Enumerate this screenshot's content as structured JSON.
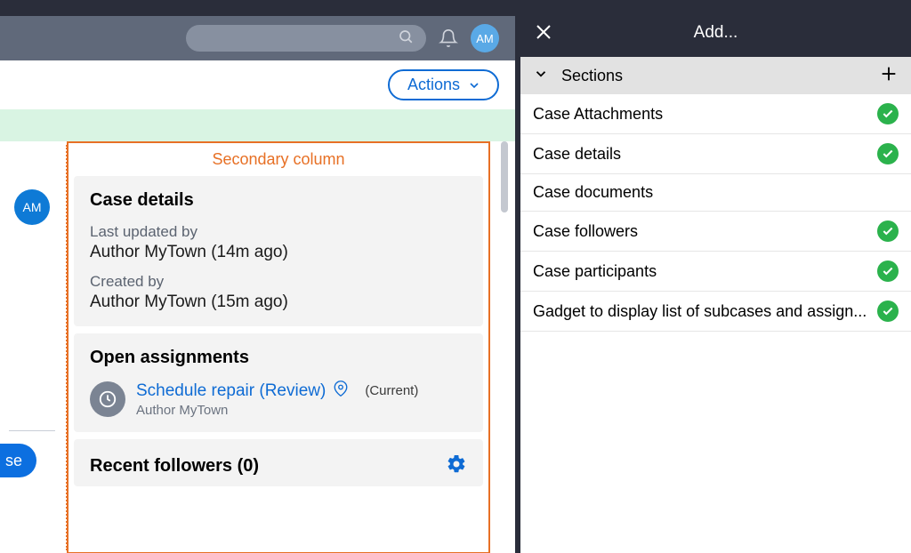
{
  "colors": {
    "accent_blue": "#0e6bd4",
    "accent_orange": "#e77025",
    "success_green": "#2bb24c",
    "dark_header": "#2a2d3a",
    "top_bar": "#60697a"
  },
  "top": {
    "avatar_initials": "AM"
  },
  "actions": {
    "button_label": "Actions"
  },
  "left_context": {
    "avatar_initials": "AM",
    "primary_button_fragment": "se"
  },
  "secondary_column": {
    "label": "Secondary column",
    "case_details": {
      "title": "Case details",
      "last_updated_label": "Last updated by",
      "last_updated_value": "Author MyTown (14m ago)",
      "created_label": "Created by",
      "created_value": "Author MyTown (15m ago)"
    },
    "open_assignments": {
      "title": "Open assignments",
      "link": "Schedule repair (Review)",
      "current": "(Current)",
      "author": "Author MyTown"
    },
    "recent_followers": {
      "title": "Recent followers (0)"
    }
  },
  "right_panel": {
    "title": "Add...",
    "section_header": "Sections",
    "items": [
      {
        "label": "Case Attachments",
        "checked": true
      },
      {
        "label": "Case details",
        "checked": true
      },
      {
        "label": "Case documents",
        "checked": false
      },
      {
        "label": "Case followers",
        "checked": true
      },
      {
        "label": "Case participants",
        "checked": true
      },
      {
        "label": "Gadget to display list of subcases and assign...",
        "checked": true
      }
    ]
  }
}
